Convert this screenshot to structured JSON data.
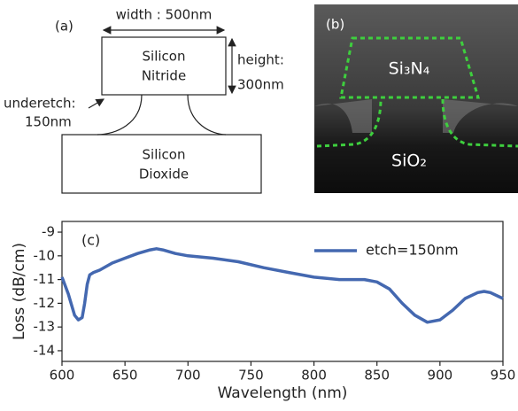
{
  "panel_a": {
    "label": "(a)",
    "width_label": "width : 500nm",
    "nitride": [
      "Silicon",
      "Nitride"
    ],
    "height_label": [
      "height:",
      "300nm"
    ],
    "underetch_label": [
      "underetch:",
      "150nm"
    ],
    "dioxide": [
      "Silicon",
      "Dioxide"
    ]
  },
  "panel_b": {
    "label": "(b)",
    "top_material": "Si₃N₄",
    "bottom_material": "SiO₂"
  },
  "chart_data": {
    "type": "line",
    "annotation": "(c)",
    "x_label": "Wavelength (nm)",
    "y_label": "Loss (dB/cm)",
    "x": [
      600,
      605,
      610,
      613,
      616,
      618,
      620,
      622,
      625,
      630,
      640,
      650,
      660,
      670,
      675,
      680,
      690,
      700,
      720,
      740,
      760,
      780,
      800,
      820,
      840,
      850,
      860,
      870,
      880,
      890,
      900,
      910,
      920,
      930,
      935,
      940,
      950
    ],
    "series": [
      {
        "name": "etch=150nm",
        "color": "#4468b0",
        "values": [
          -10.9,
          -11.6,
          -12.5,
          -12.7,
          -12.6,
          -12.0,
          -11.2,
          -10.8,
          -10.7,
          -10.6,
          -10.3,
          -10.1,
          -9.9,
          -9.75,
          -9.7,
          -9.75,
          -9.9,
          -10.0,
          -10.1,
          -10.25,
          -10.5,
          -10.7,
          -10.9,
          -11.0,
          -11.0,
          -11.1,
          -11.4,
          -12.0,
          -12.5,
          -12.8,
          -12.7,
          -12.3,
          -11.8,
          -11.55,
          -11.5,
          -11.55,
          -11.8
        ]
      }
    ],
    "xlim": [
      600,
      950
    ],
    "xticks": [
      600,
      650,
      700,
      750,
      800,
      850,
      900,
      950
    ],
    "ylim": [
      -14.45,
      -8.55
    ],
    "yticks": [
      -14,
      -13,
      -12,
      -11,
      -10,
      -9
    ],
    "legend": "upper right",
    "grid": false
  }
}
